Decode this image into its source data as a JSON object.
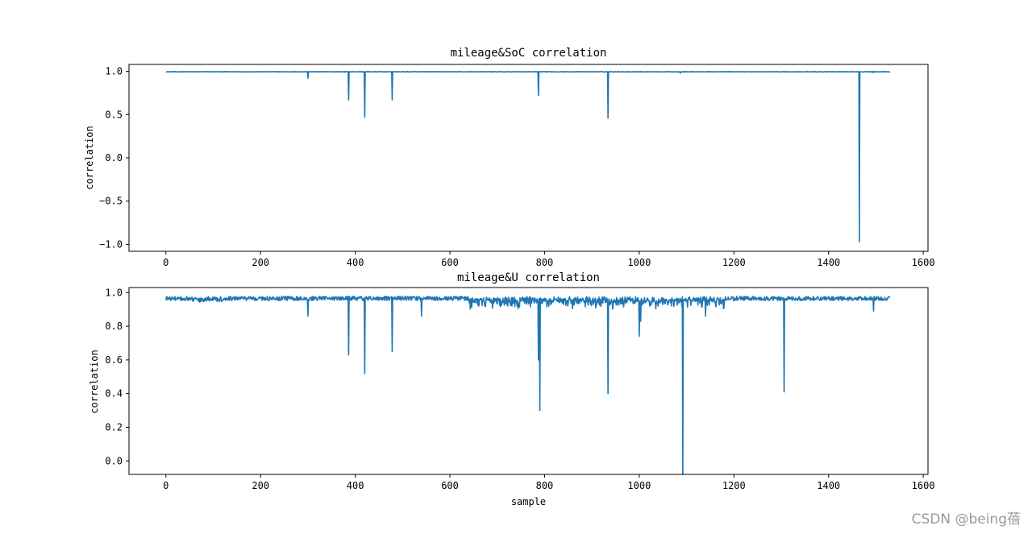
{
  "chart_data": [
    {
      "type": "line",
      "title": "mileage&SoC correlation",
      "xlabel": "",
      "ylabel": "correlation",
      "xlim": [
        -78,
        1610
      ],
      "ylim": [
        -1.08,
        1.08
      ],
      "x_ticks": [
        0,
        200,
        400,
        600,
        800,
        1000,
        1200,
        1400,
        1600
      ],
      "y_ticks": [
        1.0,
        0.5,
        0.0,
        -0.5,
        -1.0
      ],
      "x_tick_labels": [
        "0",
        "200",
        "400",
        "600",
        "800",
        "1000",
        "1200",
        "1400",
        "1600"
      ],
      "y_tick_labels": [
        "1.0",
        "0.5",
        "0.0",
        "−0.5",
        "−1.0"
      ],
      "color": "#1f77b4",
      "baseline": 0.995,
      "x_end": 1530,
      "spikes": [
        {
          "x": 300,
          "y": 0.92
        },
        {
          "x": 386,
          "y": 0.67
        },
        {
          "x": 420,
          "y": 0.47
        },
        {
          "x": 478,
          "y": 0.67
        },
        {
          "x": 787,
          "y": 0.72
        },
        {
          "x": 934,
          "y": 0.46
        },
        {
          "x": 1087,
          "y": 0.98
        },
        {
          "x": 1465,
          "y": -0.97
        },
        {
          "x": 1495,
          "y": 0.985
        }
      ]
    },
    {
      "type": "line",
      "title": "mileage&U correlation",
      "xlabel": "sample",
      "ylabel": "correlation",
      "xlim": [
        -78,
        1610
      ],
      "ylim": [
        -0.08,
        1.03
      ],
      "x_ticks": [
        0,
        200,
        400,
        600,
        800,
        1000,
        1200,
        1400,
        1600
      ],
      "y_ticks": [
        1.0,
        0.8,
        0.6,
        0.4,
        0.2,
        0.0
      ],
      "x_tick_labels": [
        "0",
        "200",
        "400",
        "600",
        "800",
        "1000",
        "1200",
        "1400",
        "1600"
      ],
      "y_tick_labels": [
        "1.0",
        "0.8",
        "0.6",
        "0.4",
        "0.2",
        "0.0"
      ],
      "color": "#1f77b4",
      "baseline": 0.965,
      "x_end": 1530,
      "spikes": [
        {
          "x": 300,
          "y": 0.86
        },
        {
          "x": 386,
          "y": 0.63
        },
        {
          "x": 420,
          "y": 0.52
        },
        {
          "x": 478,
          "y": 0.65
        },
        {
          "x": 540,
          "y": 0.86
        },
        {
          "x": 787,
          "y": 0.6
        },
        {
          "x": 790,
          "y": 0.3
        },
        {
          "x": 934,
          "y": 0.4
        },
        {
          "x": 1000,
          "y": 0.74
        },
        {
          "x": 1003,
          "y": 0.83
        },
        {
          "x": 1092,
          "y": -0.08
        },
        {
          "x": 1140,
          "y": 0.86
        },
        {
          "x": 1306,
          "y": 0.41
        },
        {
          "x": 1495,
          "y": 0.89
        }
      ]
    }
  ],
  "watermark": "CSDN @being蓓"
}
